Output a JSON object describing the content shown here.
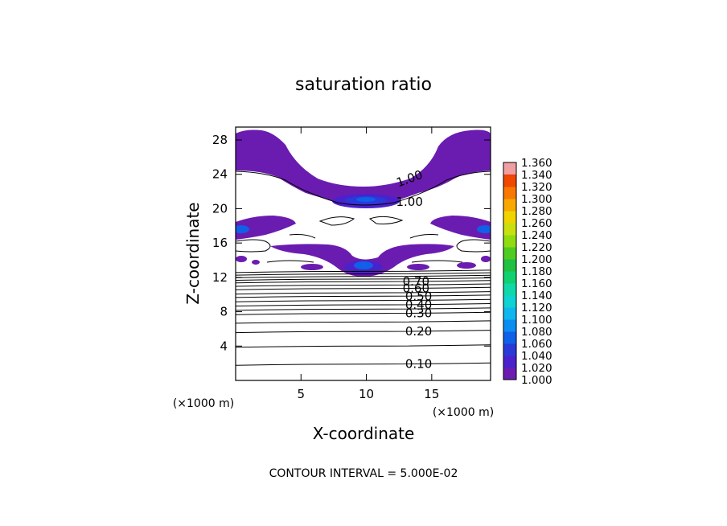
{
  "chart_data": {
    "type": "contour",
    "title": "saturation ratio",
    "xlabel": "X-coordinate",
    "ylabel": "Z-coordinate",
    "x_unit_label": "(×1000 m)",
    "z_unit_label": "(×1000 m)",
    "xlim": [
      0,
      19.5
    ],
    "ylim": [
      0,
      29.5
    ],
    "x_ticks": [
      5,
      10,
      15
    ],
    "y_ticks": [
      4,
      8,
      12,
      16,
      20,
      24,
      28
    ],
    "contour_interval_label": "CONTOUR INTERVAL = 5.000E-02",
    "contour_line_levels": [
      {
        "label": "0.10",
        "z": 1.9
      },
      {
        "label": "0.20",
        "z": 5.7
      },
      {
        "label": "0.30",
        "z": 7.8
      },
      {
        "label": "0.40",
        "z": 8.8
      },
      {
        "label": "0.50",
        "z": 9.8
      },
      {
        "label": "0.60",
        "z": 10.7
      },
      {
        "label": "0.70",
        "z": 11.5
      },
      {
        "label": "1.00",
        "z": 23.5
      },
      {
        "label": "1.00",
        "z": 20.8
      }
    ],
    "colorbar": {
      "levels": [
        "1.000",
        "1.020",
        "1.040",
        "1.060",
        "1.080",
        "1.100",
        "1.120",
        "1.140",
        "1.160",
        "1.180",
        "1.200",
        "1.220",
        "1.240",
        "1.260",
        "1.280",
        "1.300",
        "1.320",
        "1.340",
        "1.360"
      ],
      "colors": [
        "#6a1cb0",
        "#4a22cc",
        "#2a3ad8",
        "#1060e8",
        "#0b8ef0",
        "#10b6ee",
        "#0fd2d2",
        "#10d8a8",
        "#10d070",
        "#20c040",
        "#50cc20",
        "#90dc10",
        "#c8e010",
        "#f0d400",
        "#f8a800",
        "#f87800",
        "#f04800",
        "#e82020",
        "#f0a0a0"
      ]
    }
  }
}
